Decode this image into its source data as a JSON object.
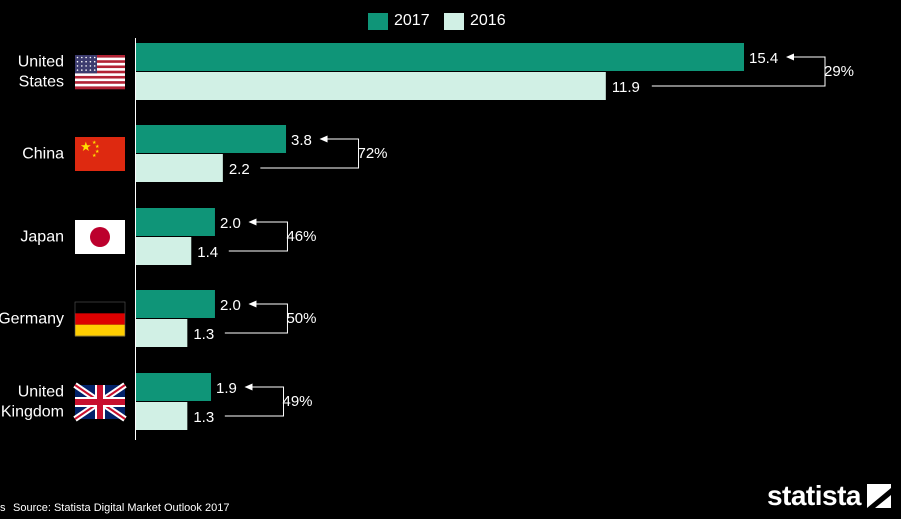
{
  "colors": {
    "y2017": "#0f9578",
    "y2016": "#d1f0e5",
    "background": "#000000",
    "text": "#ffffff"
  },
  "legend": [
    {
      "label": "2017",
      "color": "#0f9578"
    },
    {
      "label": "2016",
      "color": "#d1f0e5"
    }
  ],
  "source": "Source: Statista Digital Market Outlook 2017",
  "source_marker": "s",
  "logo": "statista",
  "chart_data": {
    "type": "bar",
    "orientation": "horizontal",
    "categories": [
      "United States",
      "China",
      "Japan",
      "Germany",
      "United Kingdom"
    ],
    "category_lines": [
      [
        "United",
        "States"
      ],
      [
        "China"
      ],
      [
        "Japan"
      ],
      [
        "Germany"
      ],
      [
        "United",
        "Kingdom"
      ]
    ],
    "flags": [
      "us-flag-icon",
      "china-flag-icon",
      "japan-flag-icon",
      "germany-flag-icon",
      "uk-flag-icon"
    ],
    "series": [
      {
        "name": "2017",
        "values": [
          15.4,
          3.8,
          2.0,
          2.0,
          1.9
        ],
        "labels": [
          "15.4",
          "3.8",
          "2.0",
          "2.0",
          "1.9"
        ]
      },
      {
        "name": "2016",
        "values": [
          11.9,
          2.2,
          1.4,
          1.3,
          1.3
        ],
        "labels": [
          "11.9",
          "2.2",
          "1.4",
          "1.3",
          "1.3"
        ]
      }
    ],
    "growth_labels": [
      "29%",
      "72%",
      "46%",
      "50%",
      "49%"
    ],
    "xlim": [
      0,
      15.4
    ],
    "legend_position": "top-center",
    "grid": false
  }
}
